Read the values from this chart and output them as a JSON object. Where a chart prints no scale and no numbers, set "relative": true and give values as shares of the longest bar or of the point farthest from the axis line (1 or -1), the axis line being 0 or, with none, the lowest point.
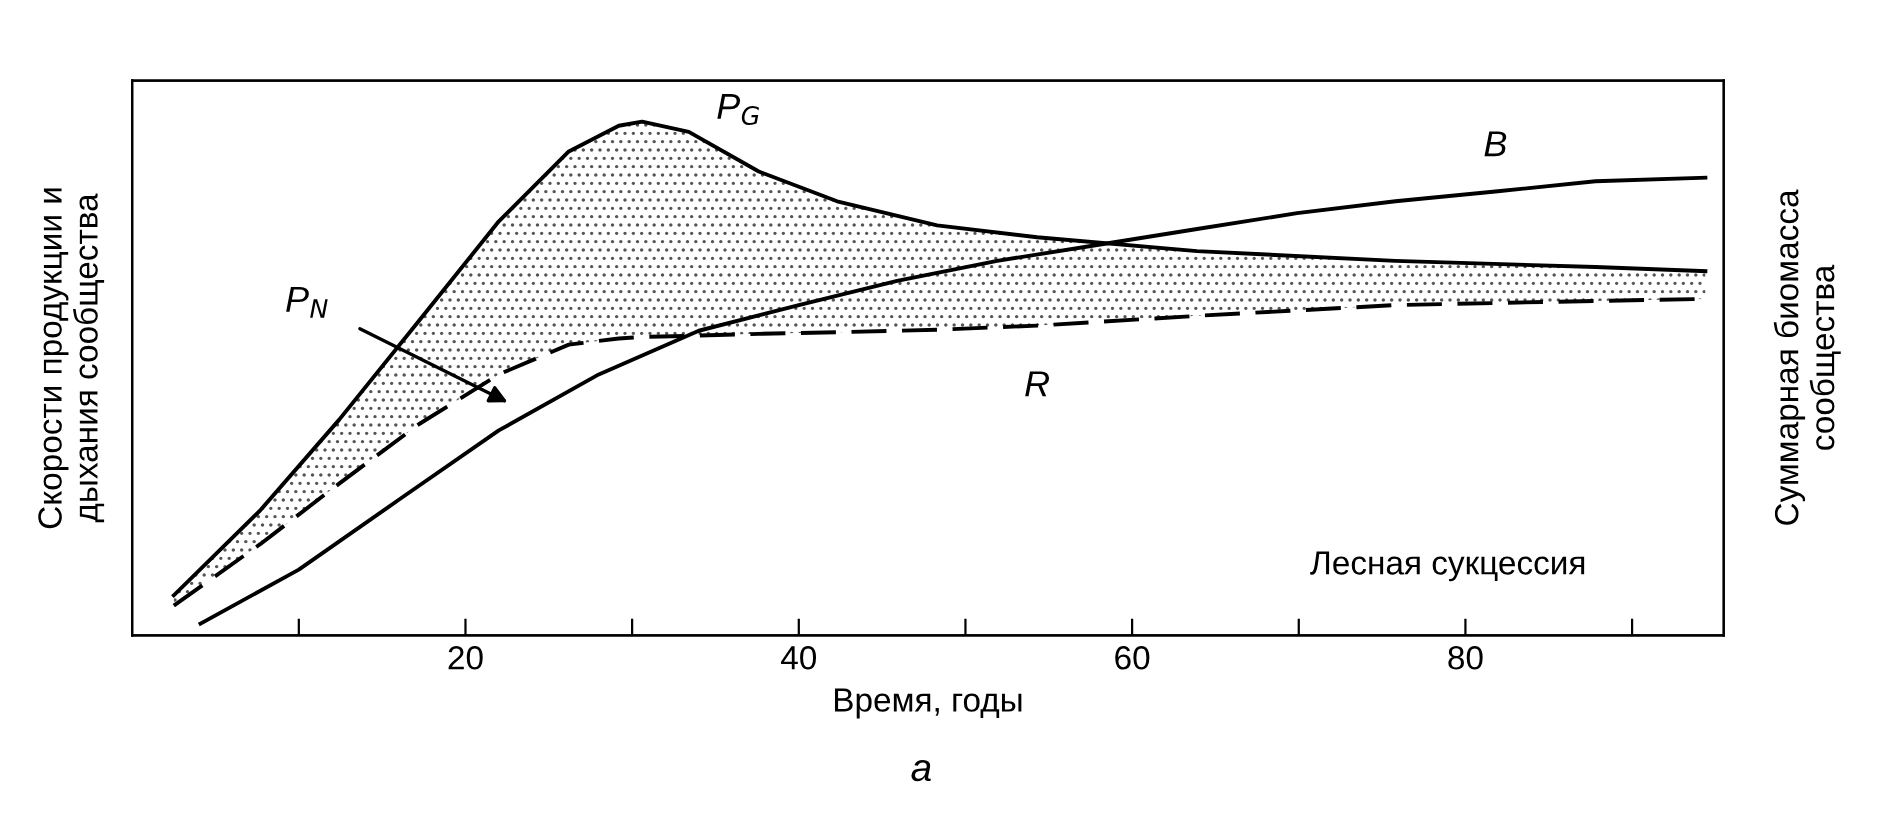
{
  "chart_data": {
    "type": "line",
    "relative": true,
    "xlabel": "Время, годы",
    "ylabel": "Скорости продукции и\nдыхания сообщества",
    "y2label": "Суммарная биомасса\nсообщества",
    "xlim": [
      0,
      95.5
    ],
    "xticks": [
      {
        "value": 10,
        "label": null
      },
      20,
      {
        "value": 30,
        "label": null
      },
      40,
      {
        "value": 50,
        "label": null
      },
      60,
      {
        "value": 70,
        "label": null
      },
      80,
      {
        "value": 90,
        "label": null
      }
    ],
    "grid": false,
    "legend": false,
    "tick_labels": "x",
    "series": [
      {
        "name": "P$_{G}$",
        "color": "#000000",
        "line_style": "solid",
        "x": [
          2.5,
          7.7,
          12.4,
          17.2,
          22,
          26.2,
          29.2,
          30.6,
          33.4,
          37.6,
          42.3,
          48.3,
          54.3,
          63.9,
          75.8,
          87.8,
          94.4
        ],
        "values": [
          0.078,
          0.244,
          0.419,
          0.612,
          0.806,
          0.942,
          0.992,
          1,
          0.98,
          0.903,
          0.845,
          0.798,
          0.775,
          0.748,
          0.729,
          0.717,
          0.709
        ],
        "lower": [
          0.058,
          0.178,
          0.295,
          0.411,
          0.508,
          0.566,
          0.578,
          0.581,
          0.583,
          0.587,
          0.59,
          0.595,
          0.603,
          0.622,
          0.643,
          0.651,
          0.655
        ],
        "upper": [
          0.078,
          0.244,
          0.419,
          0.612,
          0.806,
          0.942,
          0.992,
          1,
          0.98,
          0.903,
          0.845,
          0.798,
          0.775,
          0.748,
          0.729,
          0.717,
          0.709
        ]
      },
      {
        "name": "R",
        "color": "#000000",
        "line_style": "dashed",
        "x": [
          2.5,
          7.7,
          12.4,
          17.2,
          22,
          26.2,
          29.2,
          30.6,
          33.4,
          37.6,
          42.3,
          48.3,
          54.3,
          63.9,
          75.8,
          87.8,
          94.4
        ],
        "values": [
          0.058,
          0.178,
          0.295,
          0.411,
          0.508,
          0.566,
          0.578,
          0.581,
          0.583,
          0.587,
          0.59,
          0.595,
          0.603,
          0.622,
          0.643,
          0.651,
          0.655
        ]
      },
      {
        "name": "B",
        "color": "#000000",
        "line_style": "solid",
        "x": [
          4.1,
          10,
          16,
          22,
          28,
          34,
          40,
          45.9,
          51.9,
          57.9,
          63.9,
          69.9,
          75.8,
          81.8,
          87.8,
          94.4
        ],
        "values": [
          0.023,
          0.128,
          0.264,
          0.399,
          0.508,
          0.593,
          0.643,
          0.69,
          0.729,
          0.76,
          0.791,
          0.822,
          0.845,
          0.864,
          0.884,
          0.891
        ]
      }
    ],
    "annotations": [
      "P$_{N}$",
      "Лесная сукцессия",
      "а"
    ]
  }
}
